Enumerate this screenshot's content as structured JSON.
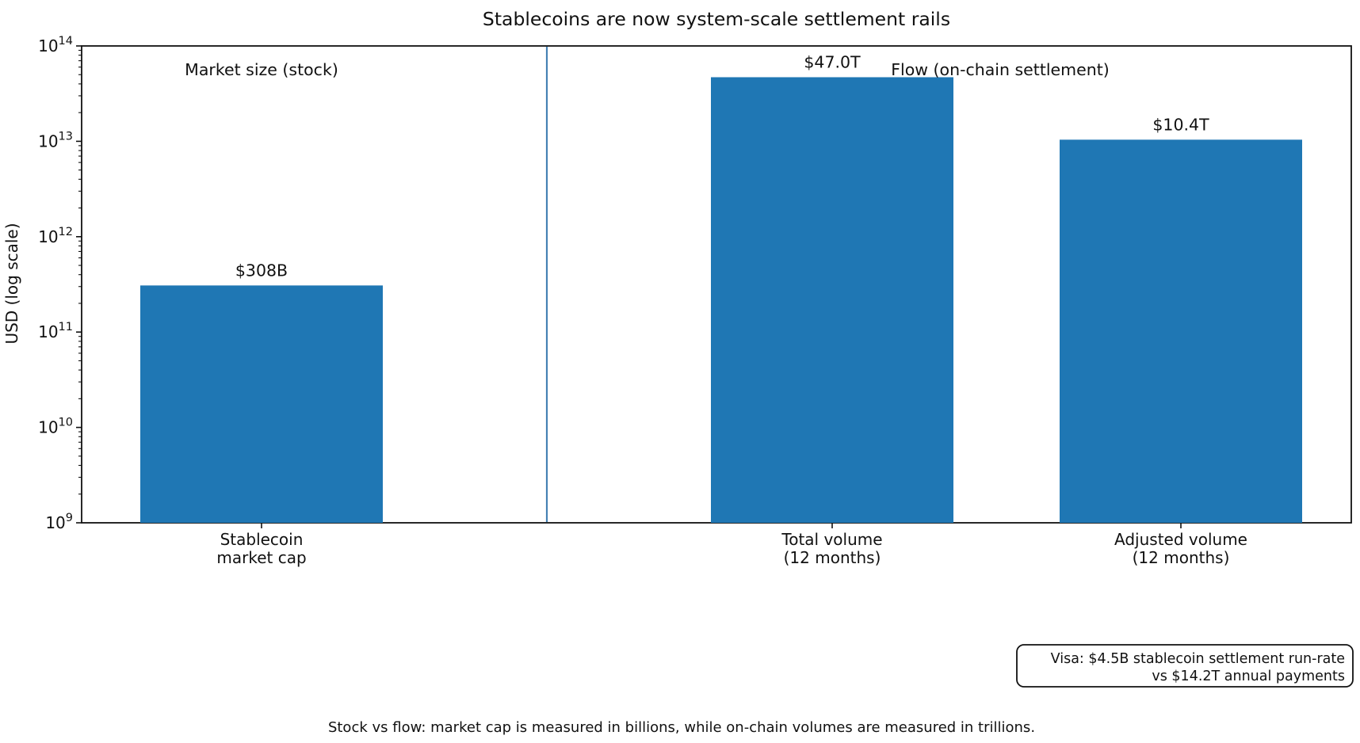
{
  "figure": {
    "title": "Stablecoins are now system-scale settlement rails",
    "caption": "Stock vs flow: market cap is measured in billions, while on-chain volumes are measured in trillions."
  },
  "chart_data": {
    "type": "bar",
    "title": "Stablecoins are now system-scale settlement rails",
    "xlabel": "",
    "ylabel": "USD (log scale)",
    "yscale": "log",
    "ylim": [
      1000000000.0,
      100000000000000.0
    ],
    "y_tick_exponents": [
      9,
      10,
      11,
      12,
      13,
      14
    ],
    "categories": [
      [
        "Stablecoin",
        "market cap"
      ],
      [
        "Total volume",
        "(12 months)"
      ],
      [
        "Adjusted volume",
        "(12 months)"
      ]
    ],
    "values": [
      308000000000.0,
      47000000000000.0,
      10400000000000.0
    ],
    "bar_labels": [
      "$308B",
      "$47.0T",
      "$10.4T"
    ],
    "bar_color": "#1f77b4",
    "grid": false,
    "legend": null,
    "section_labels": [
      "Market size (stock)",
      "Flow (on-chain settlement)"
    ],
    "divider_color": "#4682b4",
    "annotation_box": {
      "line1": "Visa: $4.5B stablecoin settlement run-rate",
      "line2": "vs $14.2T annual payments"
    }
  }
}
